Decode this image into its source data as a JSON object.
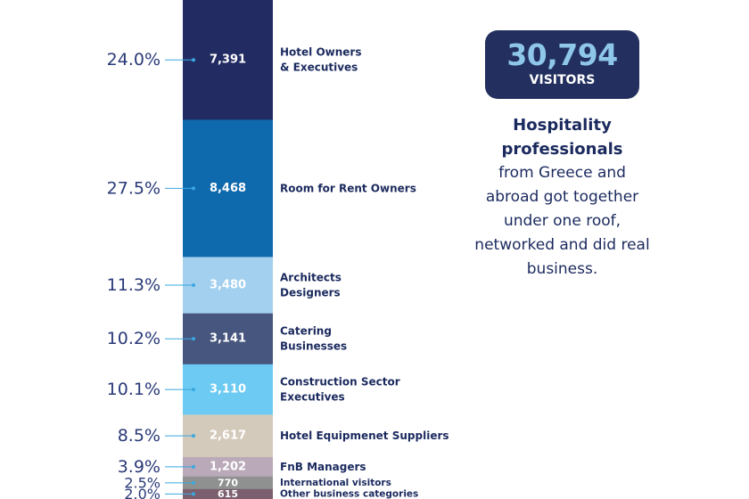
{
  "summary": {
    "total_number": "30,794",
    "total_label": "VISITORS",
    "caption_bold": "Hospitality professionals",
    "caption_rest": "from Greece and abroad got together under one roof, networked and did real business."
  },
  "chart_data": {
    "type": "bar",
    "subtype": "stacked-single-column",
    "total": 30794,
    "segments": [
      {
        "name": "Hotel Owners & Executives",
        "value": 7391,
        "value_label": "7,391",
        "percent": 24.0,
        "percent_label": "24.0%",
        "color": "#232c62",
        "label_lines": [
          "Hotel Owners",
          "& Executives"
        ]
      },
      {
        "name": "Room for Rent Owners",
        "value": 8468,
        "value_label": "8,468",
        "percent": 27.5,
        "percent_label": "27.5%",
        "color": "#0f69ad",
        "label_lines": [
          "Room for Rent Owners"
        ]
      },
      {
        "name": "Architects Designers",
        "value": 3480,
        "value_label": "3,480",
        "percent": 11.3,
        "percent_label": "11.3%",
        "color": "#a3d0ee",
        "label_lines": [
          "Architects",
          "Designers"
        ]
      },
      {
        "name": "Catering Businesses",
        "value": 3141,
        "value_label": "3,141",
        "percent": 10.2,
        "percent_label": "10.2%",
        "color": "#46567e",
        "label_lines": [
          "Catering",
          "Businesses"
        ]
      },
      {
        "name": "Construction Sector Executives",
        "value": 3110,
        "value_label": "3,110",
        "percent": 10.1,
        "percent_label": "10.1%",
        "color": "#6ccaf3",
        "label_lines": [
          "Construction Sector",
          "Executives"
        ]
      },
      {
        "name": "Hotel Equipmenet Suppliers",
        "value": 2617,
        "value_label": "2,617",
        "percent": 8.5,
        "percent_label": "8.5%",
        "color": "#d4cabb",
        "label_lines": [
          "Hotel Equipmenet Suppliers"
        ]
      },
      {
        "name": "FnB Managers",
        "value": 1202,
        "value_label": "1,202",
        "percent": 3.9,
        "percent_label": "3.9%",
        "color": "#b9a9b9",
        "label_lines": [
          "FnB Managers"
        ]
      },
      {
        "name": "International visitors",
        "value": 770,
        "value_label": "770",
        "percent": 2.5,
        "percent_label": "2.5%",
        "color": "#8f9191",
        "label_lines": [
          "International visitors"
        ]
      },
      {
        "name": "Other business categories",
        "value": 615,
        "value_label": "615",
        "percent": 2.0,
        "percent_label": "2.0%",
        "color": "#7b5f6e",
        "label_lines": [
          "Other business categories"
        ]
      }
    ],
    "connector_color": "#3aa8e0",
    "percent_text_color": "#2a3a78",
    "category_text_color": "#1b2a5e"
  }
}
